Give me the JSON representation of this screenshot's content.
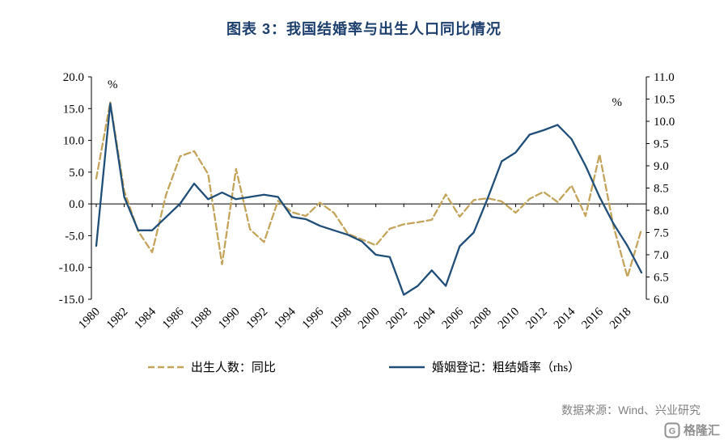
{
  "title": "图表 3：我国结婚率与出生人口同比情况",
  "source": "数据来源：Wind、兴业研究",
  "logo": "格隆汇",
  "colors": {
    "title": "#1C3F6E",
    "birth_line": "#C4A35A",
    "marriage_line": "#1F4E79",
    "axis": "#000000",
    "source_text": "#808080",
    "logo_gray": "#8F8F8F"
  },
  "chart_data": {
    "type": "line",
    "x": [
      1980,
      1981,
      1982,
      1983,
      1984,
      1985,
      1986,
      1987,
      1988,
      1989,
      1990,
      1991,
      1992,
      1993,
      1994,
      1995,
      1996,
      1997,
      1998,
      1999,
      2000,
      2001,
      2002,
      2003,
      2004,
      2005,
      2006,
      2007,
      2008,
      2009,
      2010,
      2011,
      2012,
      2013,
      2014,
      2015,
      2016,
      2017,
      2018,
      2019
    ],
    "x_tick_labels": [
      "1980",
      "1982",
      "1984",
      "1986",
      "1988",
      "1990",
      "1992",
      "1994",
      "1996",
      "1998",
      "2000",
      "2002",
      "2004",
      "2006",
      "2008",
      "2010",
      "2012",
      "2014",
      "2016",
      "2018"
    ],
    "series": [
      {
        "name": "出生人数：同比",
        "axis": "left",
        "style": "dashed",
        "color": "#C4A35A",
        "values": [
          4.0,
          16.0,
          2.0,
          -4.3,
          -7.6,
          1.5,
          7.5,
          8.3,
          4.7,
          -9.5,
          5.5,
          -4.0,
          -6.0,
          0.5,
          -1.3,
          -1.9,
          0.2,
          -1.4,
          -4.7,
          -5.6,
          -6.5,
          -3.9,
          -3.2,
          -2.9,
          -2.5,
          1.5,
          -2.0,
          0.6,
          0.9,
          0.4,
          -1.4,
          0.8,
          1.9,
          0.3,
          2.9,
          -1.9,
          7.8,
          -3.5,
          -11.5,
          -4.0
        ]
      },
      {
        "name": "婚姻登记：粗结婚率（rhs）",
        "axis": "right",
        "style": "solid",
        "color": "#1F4E79",
        "values": [
          7.2,
          10.4,
          8.3,
          7.55,
          7.55,
          7.85,
          8.15,
          8.6,
          8.25,
          8.4,
          8.25,
          8.3,
          8.35,
          8.3,
          7.85,
          7.8,
          7.65,
          7.55,
          7.45,
          7.3,
          7.0,
          6.95,
          6.1,
          6.3,
          6.65,
          6.3,
          7.19,
          7.5,
          8.27,
          9.1,
          9.3,
          9.7,
          9.8,
          9.92,
          9.6,
          9.0,
          8.3,
          7.7,
          7.2,
          6.6
        ]
      }
    ],
    "left_axis": {
      "label": "%",
      "min": -15,
      "max": 20,
      "ticks": [
        "20.0",
        "15.0",
        "10.0",
        "5.0",
        "0.0",
        "-5.0",
        "-10.0",
        "-15.0"
      ]
    },
    "right_axis": {
      "label": "%",
      "min": 6,
      "max": 11,
      "ticks": [
        "11.0",
        "10.5",
        "10.0",
        "9.5",
        "9.0",
        "8.5",
        "8.0",
        "7.5",
        "7.0",
        "6.5",
        "6.0"
      ]
    },
    "grid": "off",
    "legend_position": "bottom"
  }
}
